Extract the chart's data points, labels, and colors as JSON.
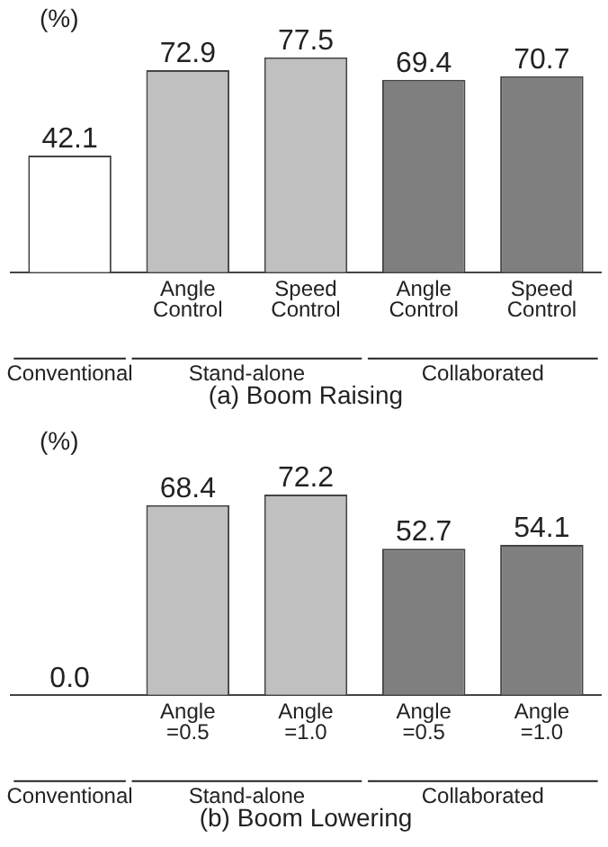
{
  "chart_data": [
    {
      "type": "bar",
      "title": "(a) Boom Raising",
      "ylabel": "(%)",
      "categories": [
        null,
        "Angle Control",
        "Speed Control",
        "Angle Control",
        "Speed Control"
      ],
      "values": [
        42.1,
        72.9,
        77.5,
        69.4,
        70.7
      ],
      "colors": [
        "#ffffff",
        "#c0c0c0",
        "#c0c0c0",
        "#7f7f7f",
        "#7f7f7f"
      ],
      "value_labels": [
        "42.1",
        "72.9",
        "77.5",
        "69.4",
        "70.7"
      ],
      "annotations": [
        "Conventional",
        "Stand-alone",
        "Collaborated"
      ],
      "grid": false,
      "legend": false
    },
    {
      "type": "bar",
      "title": "(b) Boom Lowering",
      "ylabel": "(%)",
      "categories": [
        null,
        "Angle =0.5",
        "Angle =1.0",
        "Angle =0.5",
        "Angle =1.0"
      ],
      "values": [
        0,
        68.4,
        72.2,
        52.7,
        54.1
      ],
      "colors": [
        "#ffffff",
        "#c0c0c0",
        "#c0c0c0",
        "#7f7f7f",
        "#7f7f7f"
      ],
      "value_labels": [
        "0.0",
        "68.4",
        "72.2",
        "52.7",
        "54.1"
      ],
      "annotations": [
        "Conventional",
        "Stand-alone",
        "Collaborated"
      ],
      "grid": false,
      "legend": false
    }
  ]
}
